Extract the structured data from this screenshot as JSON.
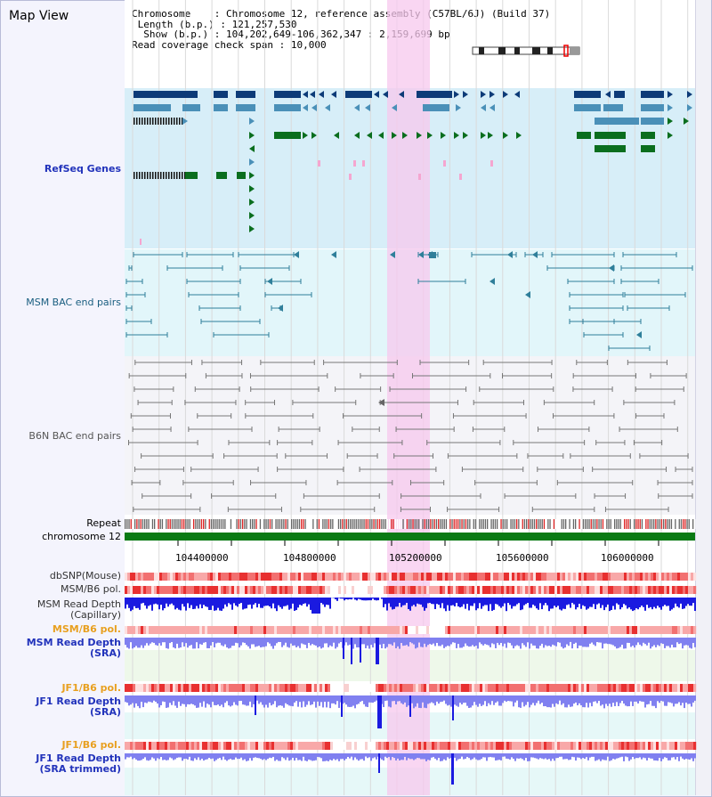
{
  "view_title": "Map View",
  "info": {
    "chromosome_label": "Chromosome",
    "chromosome_value": "Chromosome 12, reference assembly (C57BL/6J) (Build 37)",
    "length_label": "Length (b.p.)",
    "length_value": "121,257,530",
    "show_label": "Show (b.p.)",
    "show_value": "104,202,649-106,362,347 : 2,159,699 bp",
    "span_label": "Read coverage check span",
    "span_value": "10,000"
  },
  "tracks": {
    "refseq": "RefSeq Genes",
    "msm_bac": "MSM BAC end pairs",
    "b6n_bac": "B6N BAC end pairs",
    "repeat": "Repeat",
    "chromosome": "chromosome 12",
    "dbsnp": "dbSNP(Mouse)",
    "msm_b6_pol": "MSM/B6 pol.",
    "msm_depth_cap_1": "MSM Read Depth",
    "msm_depth_cap_2": "(Capillary)",
    "msm_b6_pol_2": "MSM/B6 pol.",
    "msm_depth_sra_1": "MSM Read Depth",
    "msm_depth_sra_2": "(SRA)",
    "jf1_b6_pol": "JF1/B6 pol.",
    "jf1_depth_sra_1": "JF1 Read Depth",
    "jf1_depth_sra_2": "(SRA)",
    "jf1_b6_pol_2": "JF1/B6 pol.",
    "jf1_depth_trim_1": "JF1 Read Depth",
    "jf1_depth_trim_2": "(SRA trimmed)"
  },
  "axis": {
    "ticks": [
      "104400000",
      "104800000",
      "105200000",
      "105600000",
      "106000000"
    ]
  },
  "colors": {
    "refseq_bg": "#d7eef8",
    "msm_bg": "#e2f6fa",
    "b6n_bg": "#f4f4f8",
    "highlight": "#f7c8ee",
    "gene_dark": "#0d3b78",
    "gene_mid": "#4a90b8",
    "gene_green": "#0a6e1e",
    "msm_pair": "#2f7f9a",
    "b6n_pair": "#777777",
    "chromosome_bar": "#0a7a14",
    "depth_dark": "#1a1ae0",
    "depth_light": "#8080f0"
  }
}
